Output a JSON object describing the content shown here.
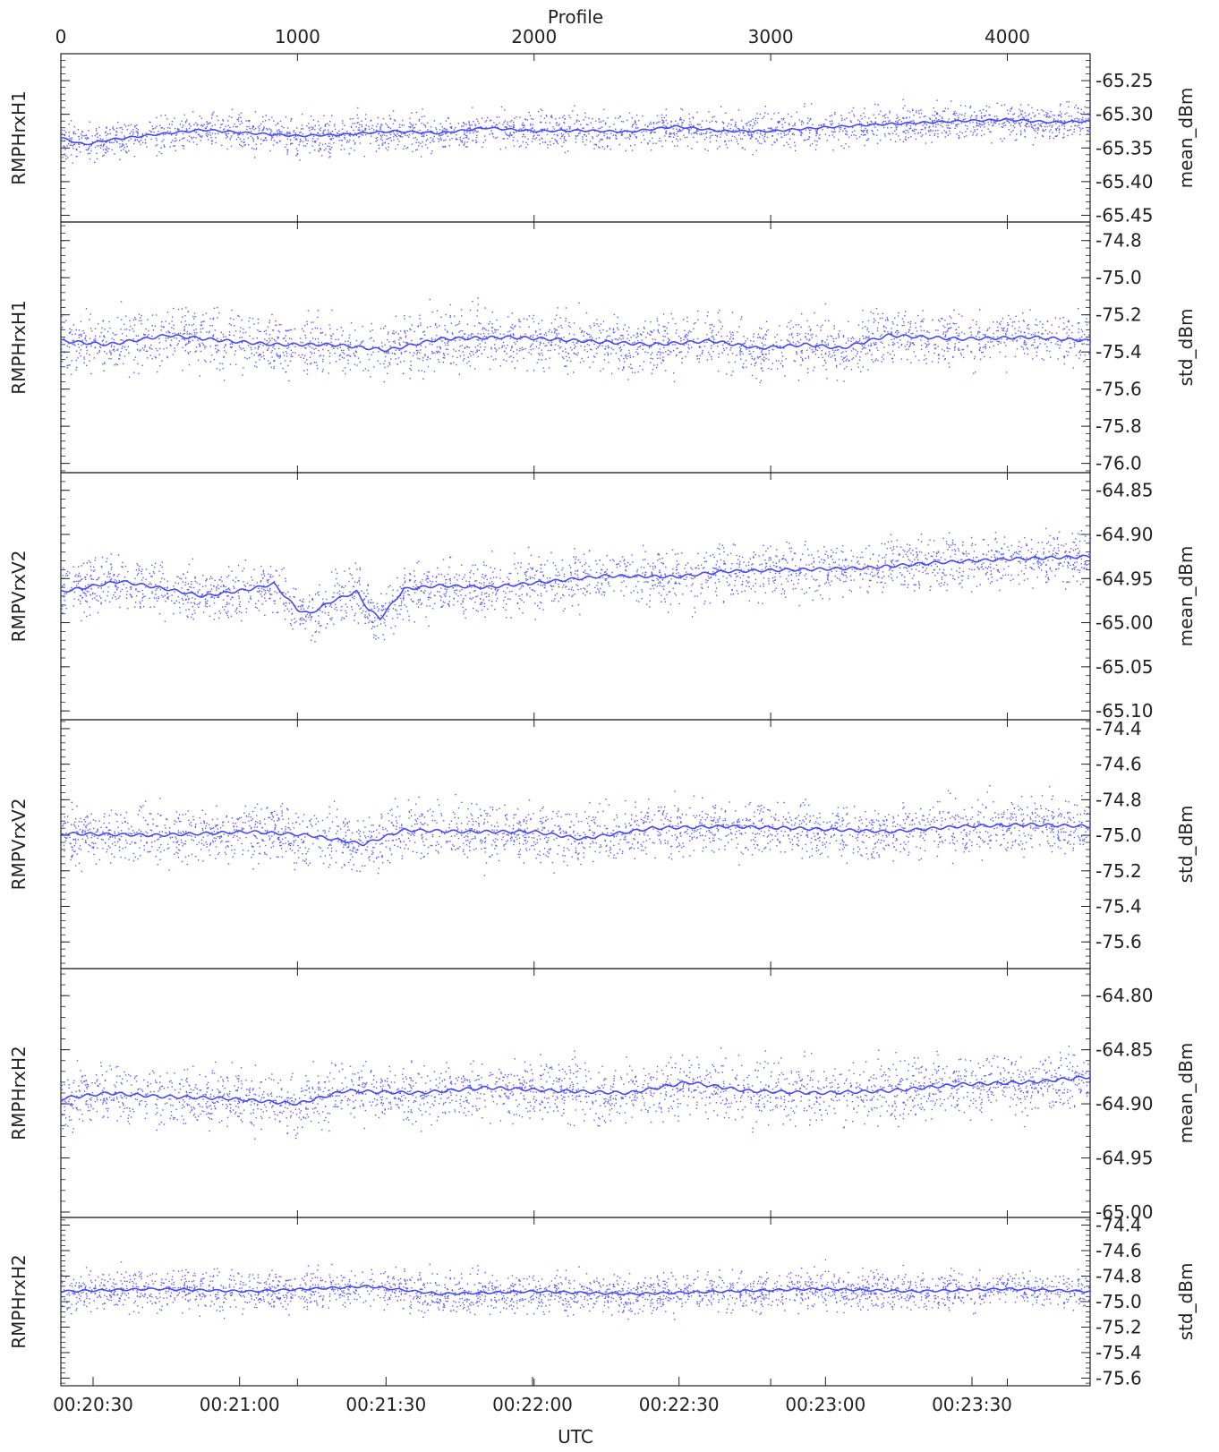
{
  "top_axis": {
    "label": "Profile",
    "ticks": [
      "0",
      "1000",
      "2000",
      "3000",
      "4000"
    ],
    "range": [
      0,
      4350
    ]
  },
  "bottom_axis": {
    "label": "UTC",
    "ticks": [
      "00:20:30",
      "00:21:00",
      "00:21:30",
      "00:22:00",
      "00:22:30",
      "00:23:00",
      "00:23:30"
    ]
  },
  "colors": {
    "points": "#5a5aff",
    "line": "#4a4aee",
    "axes": "#222222"
  },
  "chart_data": [
    {
      "type": "scatter",
      "left_label": "RMPHrxH1",
      "right_label": "mean_dBm",
      "ylim": [
        -65.46,
        -65.21
      ],
      "yticks": [
        "-65.25",
        "-65.30",
        "-65.35",
        "-65.40",
        "-65.45"
      ],
      "ytick_values": [
        -65.25,
        -65.3,
        -65.35,
        -65.4,
        -65.45
      ],
      "series": [
        {
          "mean_trend": [
            [
              0,
              -65.335
            ],
            [
              100,
              -65.345
            ],
            [
              200,
              -65.338
            ],
            [
              400,
              -65.33
            ],
            [
              600,
              -65.323
            ],
            [
              800,
              -65.328
            ],
            [
              1000,
              -65.332
            ],
            [
              1200,
              -65.33
            ],
            [
              1400,
              -65.325
            ],
            [
              1600,
              -65.328
            ],
            [
              1800,
              -65.32
            ],
            [
              2000,
              -65.325
            ],
            [
              2200,
              -65.324
            ],
            [
              2400,
              -65.326
            ],
            [
              2600,
              -65.318
            ],
            [
              2800,
              -65.325
            ],
            [
              3000,
              -65.325
            ],
            [
              3200,
              -65.32
            ],
            [
              3400,
              -65.316
            ],
            [
              3600,
              -65.313
            ],
            [
              3800,
              -65.31
            ],
            [
              4000,
              -65.308
            ],
            [
              4200,
              -65.312
            ],
            [
              4350,
              -65.31
            ]
          ],
          "spread": 0.035
        }
      ]
    },
    {
      "type": "scatter",
      "left_label": "RMPHrxH1",
      "right_label": "std_dBm",
      "ylim": [
        -76.05,
        -74.7
      ],
      "yticks": [
        "-74.8",
        "-75.0",
        "-75.2",
        "-75.4",
        "-75.6",
        "-75.8",
        "-76.0"
      ],
      "ytick_values": [
        -74.8,
        -75.0,
        -75.2,
        -75.4,
        -75.6,
        -75.8,
        -76.0
      ],
      "series": [
        {
          "mean_trend": [
            [
              0,
              -75.34
            ],
            [
              200,
              -75.36
            ],
            [
              450,
              -75.31
            ],
            [
              700,
              -75.34
            ],
            [
              900,
              -75.36
            ],
            [
              1150,
              -75.36
            ],
            [
              1380,
              -75.39
            ],
            [
              1600,
              -75.33
            ],
            [
              1900,
              -75.32
            ],
            [
              2200,
              -75.34
            ],
            [
              2500,
              -75.36
            ],
            [
              2750,
              -75.34
            ],
            [
              2950,
              -75.38
            ],
            [
              3150,
              -75.36
            ],
            [
              3300,
              -75.38
            ],
            [
              3500,
              -75.31
            ],
            [
              3800,
              -75.33
            ],
            [
              4100,
              -75.32
            ],
            [
              4350,
              -75.34
            ]
          ],
          "spread": 0.2
        }
      ]
    },
    {
      "type": "scatter",
      "left_label": "RMPVrxV2",
      "right_label": "mean_dBm",
      "ylim": [
        -65.11,
        -64.83
      ],
      "yticks": [
        "-64.85",
        "-64.90",
        "-64.95",
        "-65.00",
        "-65.05",
        "-65.10"
      ],
      "ytick_values": [
        -64.85,
        -64.9,
        -64.95,
        -65.0,
        -65.05,
        -65.1
      ],
      "series": [
        {
          "mean_trend": [
            [
              0,
              -64.965
            ],
            [
              250,
              -64.953
            ],
            [
              450,
              -64.962
            ],
            [
              600,
              -64.97
            ],
            [
              800,
              -64.962
            ],
            [
              900,
              -64.956
            ],
            [
              1000,
              -64.985
            ],
            [
              1050,
              -64.99
            ],
            [
              1150,
              -64.975
            ],
            [
              1250,
              -64.965
            ],
            [
              1300,
              -64.985
            ],
            [
              1350,
              -64.995
            ],
            [
              1450,
              -64.962
            ],
            [
              1600,
              -64.958
            ],
            [
              1800,
              -64.96
            ],
            [
              2000,
              -64.955
            ],
            [
              2300,
              -64.947
            ],
            [
              2600,
              -64.948
            ],
            [
              2800,
              -64.942
            ],
            [
              3100,
              -64.94
            ],
            [
              3400,
              -64.938
            ],
            [
              3700,
              -64.932
            ],
            [
              4000,
              -64.928
            ],
            [
              4350,
              -64.925
            ]
          ],
          "spread": 0.04
        }
      ]
    },
    {
      "type": "scatter",
      "left_label": "RMPVrxV2",
      "right_label": "std_dBm",
      "ylim": [
        -75.75,
        -74.35
      ],
      "yticks": [
        "-74.4",
        "-74.6",
        "-74.8",
        "-75.0",
        "-75.2",
        "-75.4",
        "-75.6"
      ],
      "ytick_values": [
        -74.4,
        -74.6,
        -74.8,
        -75.0,
        -75.2,
        -75.4,
        -75.6
      ],
      "series": [
        {
          "mean_trend": [
            [
              0,
              -74.99
            ],
            [
              400,
              -75.0
            ],
            [
              800,
              -74.98
            ],
            [
              1050,
              -75.0
            ],
            [
              1280,
              -75.05
            ],
            [
              1450,
              -74.97
            ],
            [
              1700,
              -74.98
            ],
            [
              2000,
              -74.98
            ],
            [
              2200,
              -75.02
            ],
            [
              2500,
              -74.96
            ],
            [
              2800,
              -74.95
            ],
            [
              3100,
              -74.96
            ],
            [
              3500,
              -74.98
            ],
            [
              3800,
              -74.95
            ],
            [
              4100,
              -74.94
            ],
            [
              4350,
              -74.95
            ]
          ],
          "spread": 0.2
        }
      ]
    },
    {
      "type": "scatter",
      "left_label": "RMPHrxH2",
      "right_label": "mean_dBm",
      "ylim": [
        -65.005,
        -64.775
      ],
      "yticks": [
        "-64.80",
        "-64.85",
        "-64.90",
        "-64.95",
        "-65.00"
      ],
      "ytick_values": [
        -64.8,
        -64.85,
        -64.9,
        -64.95,
        -65.0
      ],
      "series": [
        {
          "mean_trend": [
            [
              0,
              -64.895
            ],
            [
              200,
              -64.89
            ],
            [
              400,
              -64.893
            ],
            [
              700,
              -64.895
            ],
            [
              1000,
              -64.9
            ],
            [
              1200,
              -64.888
            ],
            [
              1500,
              -64.89
            ],
            [
              1800,
              -64.885
            ],
            [
              2100,
              -64.888
            ],
            [
              2400,
              -64.89
            ],
            [
              2650,
              -64.88
            ],
            [
              2900,
              -64.888
            ],
            [
              3200,
              -64.89
            ],
            [
              3500,
              -64.888
            ],
            [
              3800,
              -64.882
            ],
            [
              4100,
              -64.88
            ],
            [
              4350,
              -64.875
            ]
          ],
          "spread": 0.035
        }
      ]
    },
    {
      "type": "scatter",
      "left_label": "RMPHrxH2",
      "right_label": "std_dBm",
      "ylim": [
        -75.66,
        -74.34
      ],
      "yticks": [
        "-74.4",
        "-74.6",
        "-74.8",
        "-75.0",
        "-75.2",
        "-75.4",
        "-75.6"
      ],
      "ytick_values": [
        -74.4,
        -74.6,
        -74.8,
        -75.0,
        -75.2,
        -75.4,
        -75.6
      ],
      "series": [
        {
          "mean_trend": [
            [
              0,
              -74.92
            ],
            [
              400,
              -74.9
            ],
            [
              800,
              -74.92
            ],
            [
              1300,
              -74.88
            ],
            [
              1600,
              -74.94
            ],
            [
              2000,
              -74.92
            ],
            [
              2400,
              -74.94
            ],
            [
              2800,
              -74.92
            ],
            [
              3200,
              -74.9
            ],
            [
              3600,
              -74.92
            ],
            [
              4000,
              -74.9
            ],
            [
              4350,
              -74.92
            ]
          ],
          "spread": 0.2
        }
      ]
    }
  ]
}
